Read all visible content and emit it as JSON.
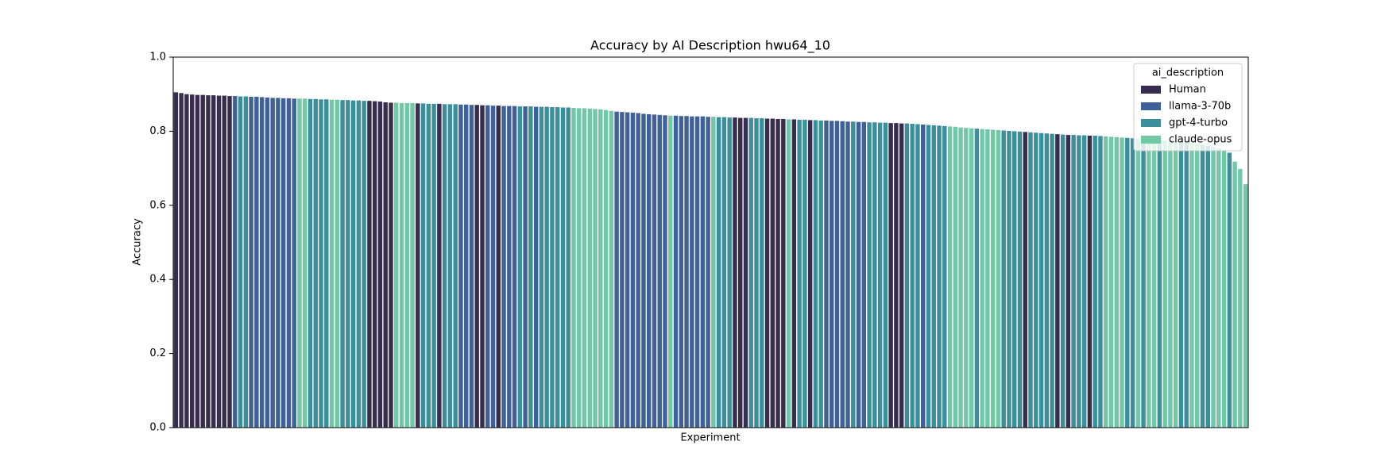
{
  "chart_data": {
    "type": "bar",
    "title": "Accuracy by AI Description hwu64_10",
    "xlabel": "Experiment",
    "ylabel": "Accuracy",
    "ylim": [
      0,
      1
    ],
    "yticks": [
      {
        "value": 0,
        "label": "0.0"
      },
      0.2,
      0.4,
      0.6,
      0.8,
      {
        "value": 1,
        "label": "1.0"
      }
    ],
    "legend": {
      "title": "ai_description",
      "corner": "upper right",
      "entries": [
        {
          "name": "Human",
          "color": "#382d4f"
        },
        {
          "name": "llama-3-70b",
          "color": "#40609a"
        },
        {
          "name": "gpt-4-turbo",
          "color": "#3b8f9b"
        },
        {
          "name": "claude-opus",
          "color": "#72c7a7"
        }
      ]
    },
    "values": [
      0.905,
      0.903,
      0.9,
      0.899,
      0.898,
      0.898,
      0.897,
      0.897,
      0.896,
      0.896,
      0.895,
      0.895,
      0.894,
      0.894,
      0.893,
      0.893,
      0.892,
      0.891,
      0.89,
      0.89,
      0.889,
      0.889,
      0.888,
      0.888,
      0.888,
      0.887,
      0.887,
      0.886,
      0.886,
      0.885,
      0.885,
      0.884,
      0.884,
      0.883,
      0.883,
      0.882,
      0.882,
      0.881,
      0.88,
      0.878,
      0.877,
      0.877,
      0.876,
      0.876,
      0.876,
      0.875,
      0.875,
      0.874,
      0.874,
      0.874,
      0.873,
      0.873,
      0.873,
      0.872,
      0.872,
      0.871,
      0.871,
      0.87,
      0.87,
      0.869,
      0.869,
      0.868,
      0.868,
      0.868,
      0.867,
      0.867,
      0.867,
      0.866,
      0.866,
      0.866,
      0.865,
      0.865,
      0.864,
      0.864,
      0.863,
      0.862,
      0.862,
      0.861,
      0.86,
      0.859,
      0.857,
      0.855,
      0.853,
      0.852,
      0.851,
      0.85,
      0.849,
      0.847,
      0.846,
      0.845,
      0.844,
      0.843,
      0.842,
      0.842,
      0.841,
      0.841,
      0.84,
      0.84,
      0.84,
      0.839,
      0.839,
      0.838,
      0.838,
      0.837,
      0.837,
      0.836,
      0.836,
      0.836,
      0.835,
      0.835,
      0.834,
      0.834,
      0.833,
      0.833,
      0.832,
      0.832,
      0.831,
      0.831,
      0.83,
      0.83,
      0.829,
      0.829,
      0.828,
      0.828,
      0.827,
      0.826,
      0.826,
      0.825,
      0.825,
      0.824,
      0.824,
      0.823,
      0.823,
      0.822,
      0.822,
      0.821,
      0.821,
      0.82,
      0.819,
      0.818,
      0.817,
      0.816,
      0.815,
      0.814,
      0.813,
      0.812,
      0.81,
      0.809,
      0.808,
      0.807,
      0.806,
      0.805,
      0.804,
      0.803,
      0.802,
      0.801,
      0.8,
      0.799,
      0.798,
      0.797,
      0.796,
      0.795,
      0.794,
      0.793,
      0.792,
      0.791,
      0.79,
      0.79,
      0.789,
      0.789,
      0.788,
      0.788,
      0.787,
      0.786,
      0.785,
      0.784,
      0.783,
      0.782,
      0.781,
      0.78,
      0.779,
      0.778,
      0.777,
      0.776,
      0.775,
      0.774,
      0.773,
      0.772,
      0.77,
      0.768,
      0.766,
      0.764,
      0.761,
      0.758,
      0.754,
      0.748,
      0.742,
      0.718,
      0.698,
      0.657
    ],
    "groups": [
      "Human",
      "Human",
      "Human",
      "Human",
      "Human",
      "Human",
      "Human",
      "Human",
      "Human",
      "Human",
      "Human",
      "llama-3-70b",
      "gpt-4-turbo",
      "gpt-4-turbo",
      "llama-3-70b",
      "llama-3-70b",
      "llama-3-70b",
      "llama-3-70b",
      "llama-3-70b",
      "llama-3-70b",
      "llama-3-70b",
      "llama-3-70b",
      "llama-3-70b",
      "claude-opus",
      "claude-opus",
      "gpt-4-turbo",
      "gpt-4-turbo",
      "gpt-4-turbo",
      "gpt-4-turbo",
      "claude-opus",
      "claude-opus",
      "gpt-4-turbo",
      "gpt-4-turbo",
      "gpt-4-turbo",
      "gpt-4-turbo",
      "gpt-4-turbo",
      "Human",
      "Human",
      "Human",
      "Human",
      "Human",
      "claude-opus",
      "claude-opus",
      "claude-opus",
      "claude-opus",
      "Human",
      "gpt-4-turbo",
      "gpt-4-turbo",
      "gpt-4-turbo",
      "Human",
      "gpt-4-turbo",
      "gpt-4-turbo",
      "gpt-4-turbo",
      "llama-3-70b",
      "llama-3-70b",
      "llama-3-70b",
      "Human",
      "Human",
      "llama-3-70b",
      "llama-3-70b",
      "Human",
      "llama-3-70b",
      "llama-3-70b",
      "llama-3-70b",
      "gpt-4-turbo",
      "llama-3-70b",
      "gpt-4-turbo",
      "llama-3-70b",
      "gpt-4-turbo",
      "gpt-4-turbo",
      "gpt-4-turbo",
      "gpt-4-turbo",
      "gpt-4-turbo",
      "gpt-4-turbo",
      "claude-opus",
      "claude-opus",
      "claude-opus",
      "claude-opus",
      "claude-opus",
      "claude-opus",
      "claude-opus",
      "claude-opus",
      "llama-3-70b",
      "llama-3-70b",
      "llama-3-70b",
      "llama-3-70b",
      "llama-3-70b",
      "llama-3-70b",
      "llama-3-70b",
      "llama-3-70b",
      "llama-3-70b",
      "llama-3-70b",
      "claude-opus",
      "llama-3-70b",
      "llama-3-70b",
      "llama-3-70b",
      "llama-3-70b",
      "llama-3-70b",
      "llama-3-70b",
      "llama-3-70b",
      "claude-opus",
      "gpt-4-turbo",
      "gpt-4-turbo",
      "gpt-4-turbo",
      "Human",
      "Human",
      "Human",
      "gpt-4-turbo",
      "gpt-4-turbo",
      "gpt-4-turbo",
      "Human",
      "Human",
      "Human",
      "Human",
      "claude-opus",
      "Human",
      "gpt-4-turbo",
      "gpt-4-turbo",
      "Human",
      "gpt-4-turbo",
      "gpt-4-turbo",
      "llama-3-70b",
      "llama-3-70b",
      "llama-3-70b",
      "llama-3-70b",
      "llama-3-70b",
      "gpt-4-turbo",
      "llama-3-70b",
      "llama-3-70b",
      "gpt-4-turbo",
      "gpt-4-turbo",
      "gpt-4-turbo",
      "gpt-4-turbo",
      "Human",
      "Human",
      "Human",
      "gpt-4-turbo",
      "gpt-4-turbo",
      "gpt-4-turbo",
      "llama-3-70b",
      "gpt-4-turbo",
      "gpt-4-turbo",
      "gpt-4-turbo",
      "gpt-4-turbo",
      "claude-opus",
      "claude-opus",
      "claude-opus",
      "claude-opus",
      "claude-opus",
      "gpt-4-turbo",
      "claude-opus",
      "claude-opus",
      "claude-opus",
      "claude-opus",
      "gpt-4-turbo",
      "gpt-4-turbo",
      "gpt-4-turbo",
      "gpt-4-turbo",
      "Human",
      "gpt-4-turbo",
      "gpt-4-turbo",
      "gpt-4-turbo",
      "gpt-4-turbo",
      "gpt-4-turbo",
      "Human",
      "gpt-4-turbo",
      "Human",
      "gpt-4-turbo",
      "gpt-4-turbo",
      "gpt-4-turbo",
      "Human",
      "gpt-4-turbo",
      "gpt-4-turbo",
      "claude-opus",
      "claude-opus",
      "claude-opus",
      "claude-opus",
      "gpt-4-turbo",
      "gpt-4-turbo",
      "claude-opus",
      "gpt-4-turbo",
      "claude-opus",
      "claude-opus",
      "gpt-4-turbo",
      "claude-opus",
      "claude-opus",
      "claude-opus",
      "gpt-4-turbo",
      "gpt-4-turbo",
      "claude-opus",
      "claude-opus",
      "gpt-4-turbo",
      "gpt-4-turbo",
      "claude-opus",
      "claude-opus",
      "claude-opus",
      "gpt-4-turbo",
      "claude-opus",
      "claude-opus",
      "claude-opus"
    ]
  }
}
